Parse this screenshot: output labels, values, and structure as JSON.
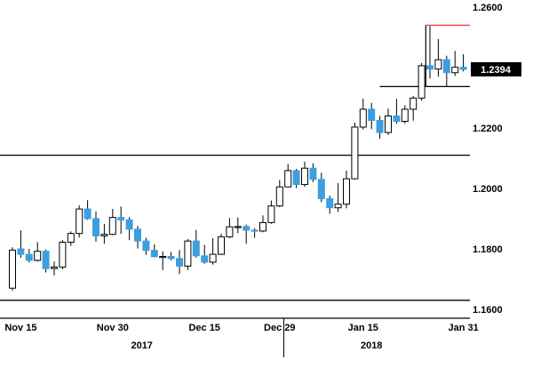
{
  "colors": {
    "up_fill": "#ffffff",
    "up_border": "#000000",
    "down_fill": "#3b9fe0",
    "wick": "#000000",
    "line": "#000000",
    "resistance_red": "#f0413b",
    "price_label_bg": "#000000",
    "price_label_text": "#ffffff",
    "axis_text": "#000000"
  },
  "chart_data": {
    "type": "candlestick",
    "title": "",
    "xlabel": "",
    "ylabel": "",
    "grid": false,
    "legend": "none",
    "ylim": [
      1.157,
      1.262
    ],
    "y_axis": {
      "ticks": [
        {
          "label": "1.2600",
          "value": 1.26
        },
        {
          "label": "1.2200",
          "value": 1.22
        },
        {
          "label": "1.2000",
          "value": 1.2
        },
        {
          "label": "1.1800",
          "value": 1.18
        },
        {
          "label": "1.1600",
          "value": 1.16
        }
      ]
    },
    "price_label": {
      "text": "1.2394",
      "value": 1.2394
    },
    "x_axis": {
      "ticks": [
        {
          "label": "Nov 15",
          "index": 1
        },
        {
          "label": "Nov 30",
          "index": 12
        },
        {
          "label": "Dec 15",
          "index": 23
        },
        {
          "label": "Dec 29",
          "index": 32
        },
        {
          "label": "Jan 15",
          "index": 42
        },
        {
          "label": "Jan 31",
          "index": 54
        }
      ],
      "year_labels": [
        {
          "label": "2017",
          "index": 15.5
        },
        {
          "label": "2018",
          "index": 43
        }
      ],
      "year_divider_index": 32.5
    },
    "levels": [
      {
        "price": 1.211
      },
      {
        "price": 1.163
      }
    ],
    "breakout_annotation": {
      "base_price": 1.2337,
      "base_start_index": 44,
      "vertical_index": 49.5,
      "top_price": 1.254
    },
    "candles": [
      {
        "t": "Nov 14",
        "o": 1.167,
        "h": 1.1805,
        "l": 1.1662,
        "c": 1.1796
      },
      {
        "t": "Nov 15",
        "o": 1.18,
        "h": 1.1861,
        "l": 1.1771,
        "c": 1.1782
      },
      {
        "t": "Nov 16",
        "o": 1.1782,
        "h": 1.18,
        "l": 1.1755,
        "c": 1.1762
      },
      {
        "t": "Nov 17",
        "o": 1.1762,
        "h": 1.1822,
        "l": 1.1758,
        "c": 1.1792
      },
      {
        "t": "Nov 20",
        "o": 1.1792,
        "h": 1.1798,
        "l": 1.1722,
        "c": 1.1735
      },
      {
        "t": "Nov 21",
        "o": 1.1735,
        "h": 1.1758,
        "l": 1.1712,
        "c": 1.174
      },
      {
        "t": "Nov 22",
        "o": 1.174,
        "h": 1.1829,
        "l": 1.1732,
        "c": 1.1822
      },
      {
        "t": "Nov 23",
        "o": 1.1822,
        "h": 1.1858,
        "l": 1.181,
        "c": 1.1851
      },
      {
        "t": "Nov 24",
        "o": 1.1851,
        "h": 1.1944,
        "l": 1.1838,
        "c": 1.1932
      },
      {
        "t": "Nov 27",
        "o": 1.1932,
        "h": 1.1961,
        "l": 1.1896,
        "c": 1.19
      },
      {
        "t": "Nov 28",
        "o": 1.19,
        "h": 1.1924,
        "l": 1.1824,
        "c": 1.1843
      },
      {
        "t": "Nov 29",
        "o": 1.1843,
        "h": 1.1882,
        "l": 1.1817,
        "c": 1.1848
      },
      {
        "t": "Nov 30",
        "o": 1.1848,
        "h": 1.1932,
        "l": 1.1845,
        "c": 1.1904
      },
      {
        "t": "Dec 1",
        "o": 1.1904,
        "h": 1.194,
        "l": 1.185,
        "c": 1.1896
      },
      {
        "t": "Dec 4",
        "o": 1.1896,
        "h": 1.1905,
        "l": 1.1829,
        "c": 1.1865
      },
      {
        "t": "Dec 5",
        "o": 1.1865,
        "h": 1.1876,
        "l": 1.1801,
        "c": 1.1826
      },
      {
        "t": "Dec 6",
        "o": 1.1826,
        "h": 1.1837,
        "l": 1.178,
        "c": 1.1795
      },
      {
        "t": "Dec 7",
        "o": 1.1795,
        "h": 1.1815,
        "l": 1.1772,
        "c": 1.1774
      },
      {
        "t": "Dec 8",
        "o": 1.1774,
        "h": 1.1792,
        "l": 1.173,
        "c": 1.1775
      },
      {
        "t": "Dec 11",
        "o": 1.1775,
        "h": 1.179,
        "l": 1.1762,
        "c": 1.1768
      },
      {
        "t": "Dec 12",
        "o": 1.1768,
        "h": 1.1796,
        "l": 1.1717,
        "c": 1.1743
      },
      {
        "t": "Dec 13",
        "o": 1.1743,
        "h": 1.1833,
        "l": 1.173,
        "c": 1.1826
      },
      {
        "t": "Dec 14",
        "o": 1.1826,
        "h": 1.1863,
        "l": 1.1771,
        "c": 1.1777
      },
      {
        "t": "Dec 15",
        "o": 1.1777,
        "h": 1.1813,
        "l": 1.1751,
        "c": 1.1756
      },
      {
        "t": "Dec 18",
        "o": 1.1756,
        "h": 1.1835,
        "l": 1.1748,
        "c": 1.1782
      },
      {
        "t": "Dec 19",
        "o": 1.1782,
        "h": 1.185,
        "l": 1.178,
        "c": 1.184
      },
      {
        "t": "Dec 20",
        "o": 1.184,
        "h": 1.1902,
        "l": 1.1836,
        "c": 1.1873
      },
      {
        "t": "Dec 21",
        "o": 1.1873,
        "h": 1.1904,
        "l": 1.1852,
        "c": 1.1874
      },
      {
        "t": "Dec 22",
        "o": 1.1874,
        "h": 1.188,
        "l": 1.1817,
        "c": 1.1862
      },
      {
        "t": "Dec 26",
        "o": 1.1862,
        "h": 1.1869,
        "l": 1.1837,
        "c": 1.1859
      },
      {
        "t": "Dec 27",
        "o": 1.1859,
        "h": 1.1911,
        "l": 1.1855,
        "c": 1.1887
      },
      {
        "t": "Dec 28",
        "o": 1.1887,
        "h": 1.196,
        "l": 1.1883,
        "c": 1.1942
      },
      {
        "t": "Dec 29",
        "o": 1.1942,
        "h": 1.2028,
        "l": 1.1938,
        "c": 1.2005
      },
      {
        "t": "Jan 2",
        "o": 1.2005,
        "h": 1.2081,
        "l": 1.2004,
        "c": 1.2059
      },
      {
        "t": "Jan 3",
        "o": 1.2059,
        "h": 1.2065,
        "l": 1.2001,
        "c": 1.2013
      },
      {
        "t": "Jan 4",
        "o": 1.2013,
        "h": 1.2089,
        "l": 1.2005,
        "c": 1.2067
      },
      {
        "t": "Jan 5",
        "o": 1.2067,
        "h": 1.2083,
        "l": 1.2021,
        "c": 1.203
      },
      {
        "t": "Jan 8",
        "o": 1.203,
        "h": 1.2052,
        "l": 1.1954,
        "c": 1.1966
      },
      {
        "t": "Jan 9",
        "o": 1.1966,
        "h": 1.1976,
        "l": 1.1916,
        "c": 1.1936
      },
      {
        "t": "Jan 10",
        "o": 1.1936,
        "h": 1.2018,
        "l": 1.1922,
        "c": 1.1948
      },
      {
        "t": "Jan 11",
        "o": 1.1948,
        "h": 1.2059,
        "l": 1.1934,
        "c": 1.2032
      },
      {
        "t": "Jan 12",
        "o": 1.2032,
        "h": 1.2218,
        "l": 1.203,
        "c": 1.2203
      },
      {
        "t": "Jan 15",
        "o": 1.2203,
        "h": 1.2297,
        "l": 1.2195,
        "c": 1.2262
      },
      {
        "t": "Jan 16",
        "o": 1.2262,
        "h": 1.2283,
        "l": 1.2196,
        "c": 1.2225
      },
      {
        "t": "Jan 17",
        "o": 1.2225,
        "h": 1.224,
        "l": 1.2165,
        "c": 1.2185
      },
      {
        "t": "Jan 18",
        "o": 1.2185,
        "h": 1.2264,
        "l": 1.2177,
        "c": 1.224
      },
      {
        "t": "Jan 19",
        "o": 1.224,
        "h": 1.2296,
        "l": 1.2214,
        "c": 1.2222
      },
      {
        "t": "Jan 22",
        "o": 1.2222,
        "h": 1.2275,
        "l": 1.2214,
        "c": 1.2262
      },
      {
        "t": "Jan 23",
        "o": 1.2262,
        "h": 1.2306,
        "l": 1.2224,
        "c": 1.2299
      },
      {
        "t": "Jan 24",
        "o": 1.2299,
        "h": 1.2415,
        "l": 1.229,
        "c": 1.2406
      },
      {
        "t": "Jan 25",
        "o": 1.2406,
        "h": 1.2537,
        "l": 1.2364,
        "c": 1.2395
      },
      {
        "t": "Jan 26",
        "o": 1.2395,
        "h": 1.2494,
        "l": 1.237,
        "c": 1.2426
      },
      {
        "t": "Jan 29",
        "o": 1.2426,
        "h": 1.2439,
        "l": 1.2336,
        "c": 1.2383
      },
      {
        "t": "Jan 30",
        "o": 1.2383,
        "h": 1.2455,
        "l": 1.2372,
        "c": 1.2401
      },
      {
        "t": "Jan 31",
        "o": 1.2401,
        "h": 1.2444,
        "l": 1.2387,
        "c": 1.2394
      }
    ]
  }
}
